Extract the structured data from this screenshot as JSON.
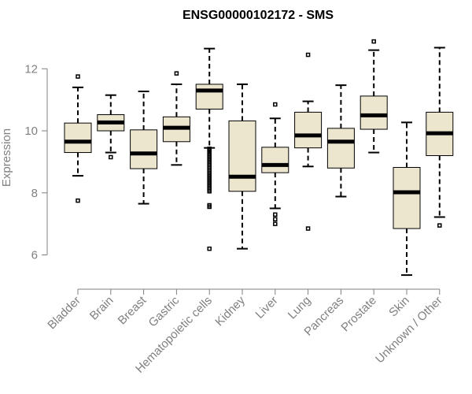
{
  "chart_data": {
    "type": "boxplot",
    "title": "ENSG00000102172 - SMS",
    "xlabel": "",
    "ylabel": "Expression",
    "ylim": [
      5.2,
      13.2
    ],
    "yticks": [
      6,
      8,
      10,
      12
    ],
    "ytick_labels": [
      "6",
      "8",
      "10",
      "12"
    ],
    "box_color": "#ede6cf",
    "categories": [
      "Bladder",
      "Brain",
      "Breast",
      "Gastric",
      "Hematopoietic cells",
      "Kidney",
      "Liver",
      "Lung",
      "Pancreas",
      "Prostate",
      "Skin",
      "Unknown / Other"
    ],
    "boxes": [
      {
        "whisker_low": 8.55,
        "q1": 9.3,
        "median": 9.65,
        "q3": 10.25,
        "whisker_high": 11.4,
        "outliers": [
          11.75,
          7.75
        ]
      },
      {
        "whisker_low": 9.3,
        "q1": 10.0,
        "median": 10.27,
        "q3": 10.52,
        "whisker_high": 11.15,
        "outliers": [
          9.15
        ]
      },
      {
        "whisker_low": 7.65,
        "q1": 8.78,
        "median": 9.27,
        "q3": 10.03,
        "whisker_high": 11.27,
        "outliers": []
      },
      {
        "whisker_low": 8.9,
        "q1": 9.65,
        "median": 10.1,
        "q3": 10.45,
        "whisker_high": 11.5,
        "outliers": [
          11.85
        ]
      },
      {
        "whisker_low": 9.45,
        "q1": 10.7,
        "median": 11.3,
        "q3": 11.5,
        "whisker_high": 12.65,
        "outliers": [
          9.42,
          9.38,
          9.34,
          9.3,
          9.25,
          9.2,
          9.15,
          9.1,
          9.05,
          9.0,
          8.95,
          8.9,
          8.85,
          8.8,
          8.75,
          8.7,
          8.65,
          8.6,
          8.55,
          8.5,
          8.45,
          8.4,
          8.35,
          8.3,
          8.25,
          8.2,
          8.15,
          8.1,
          8.05,
          7.6,
          7.55,
          6.2
        ]
      },
      {
        "whisker_low": 6.2,
        "q1": 8.05,
        "median": 8.52,
        "q3": 10.32,
        "whisker_high": 11.5,
        "outliers": []
      },
      {
        "whisker_low": 7.5,
        "q1": 8.65,
        "median": 8.9,
        "q3": 9.47,
        "whisker_high": 10.4,
        "outliers": [
          10.85,
          7.3,
          7.15,
          7.0
        ]
      },
      {
        "whisker_low": 8.85,
        "q1": 9.45,
        "median": 9.85,
        "q3": 10.6,
        "whisker_high": 10.95,
        "outliers": [
          12.45,
          6.85
        ]
      },
      {
        "whisker_low": 7.88,
        "q1": 8.8,
        "median": 9.65,
        "q3": 10.08,
        "whisker_high": 11.47,
        "outliers": []
      },
      {
        "whisker_low": 9.3,
        "q1": 10.05,
        "median": 10.5,
        "q3": 11.12,
        "whisker_high": 12.6,
        "outliers": [
          12.88
        ]
      },
      {
        "whisker_low": 5.35,
        "q1": 6.85,
        "median": 8.02,
        "q3": 8.82,
        "whisker_high": 10.27,
        "outliers": []
      },
      {
        "whisker_low": 7.22,
        "q1": 9.2,
        "median": 9.92,
        "q3": 10.6,
        "whisker_high": 12.68,
        "outliers": [
          6.95
        ]
      }
    ]
  }
}
